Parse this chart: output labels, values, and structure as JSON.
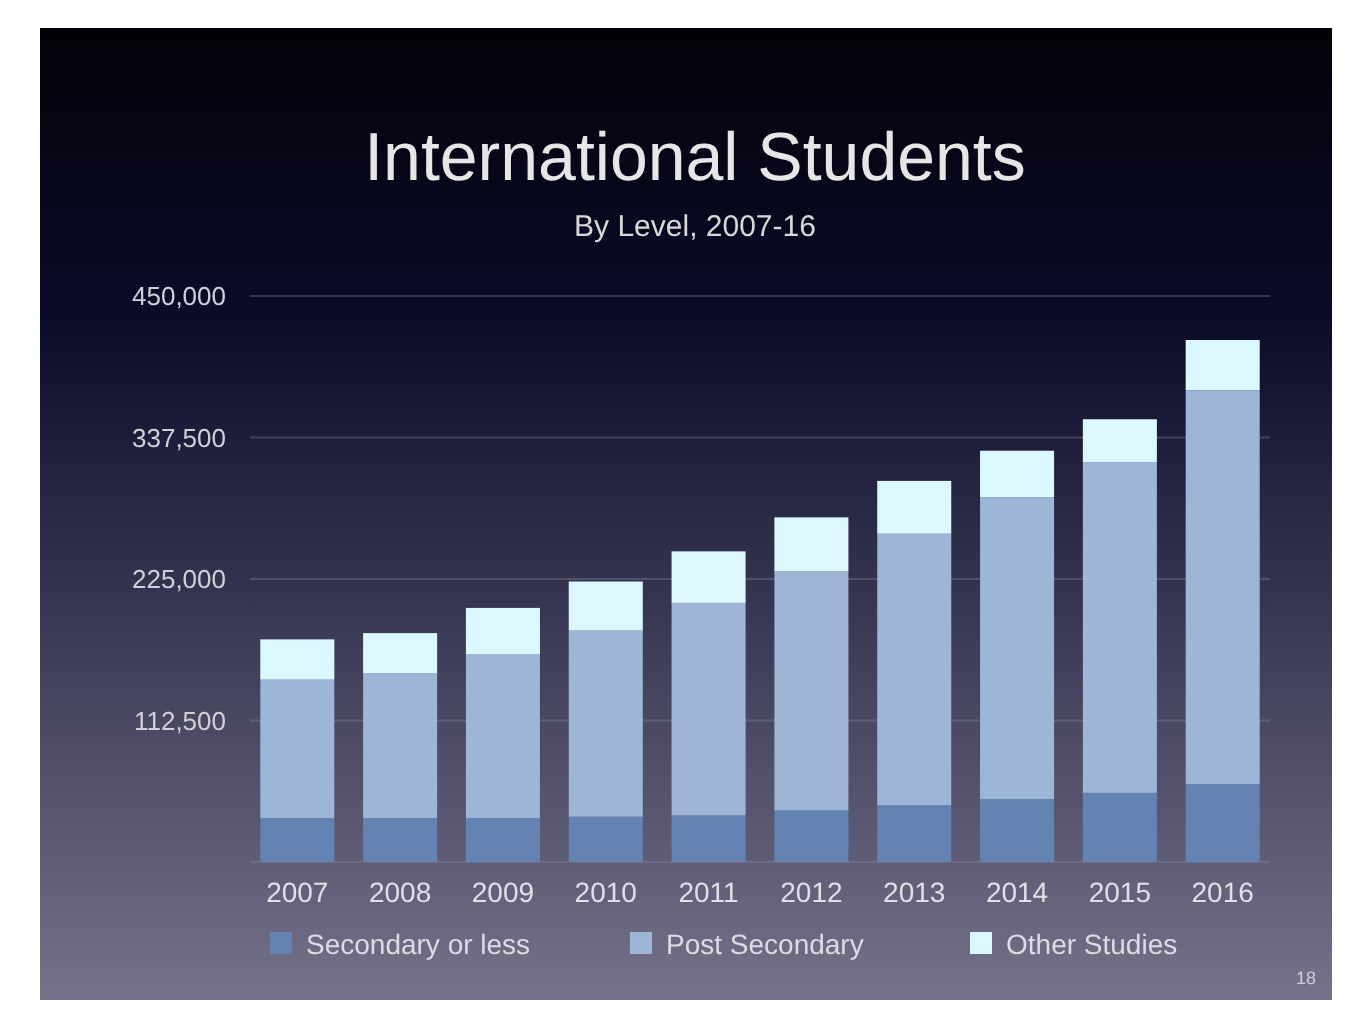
{
  "chart_data": {
    "type": "bar",
    "title": "International Students",
    "subtitle": "By Level, 2007-16",
    "categories": [
      "2007",
      "2008",
      "2009",
      "2010",
      "2011",
      "2012",
      "2013",
      "2014",
      "2015",
      "2016"
    ],
    "series": [
      {
        "name": "Secondary or less",
        "color": "#6384b3",
        "values": [
          35000,
          35000,
          35000,
          36000,
          37000,
          41000,
          45000,
          50000,
          55000,
          62000
        ]
      },
      {
        "name": "Post Secondary",
        "color": "#9db5d6",
        "values": [
          110000,
          115000,
          130000,
          148000,
          169000,
          190000,
          216000,
          240000,
          263000,
          313000
        ]
      },
      {
        "name": "Other Studies",
        "color": "#dcf8ff",
        "values": [
          32000,
          32000,
          37000,
          39000,
          41000,
          43000,
          42000,
          37000,
          34000,
          40000
        ]
      }
    ],
    "stacked": true,
    "ylim": [
      0,
      450000
    ],
    "yticks": [
      {
        "value": 0,
        "label": null
      },
      {
        "value": 112500,
        "label": "112,500"
      },
      {
        "value": 225000,
        "label": "225,000"
      },
      {
        "value": 337500,
        "label": "337,500"
      },
      {
        "value": 450000,
        "label": "450,000"
      }
    ],
    "grid": "y",
    "legend": "bottom",
    "annotations": [
      "18"
    ]
  }
}
